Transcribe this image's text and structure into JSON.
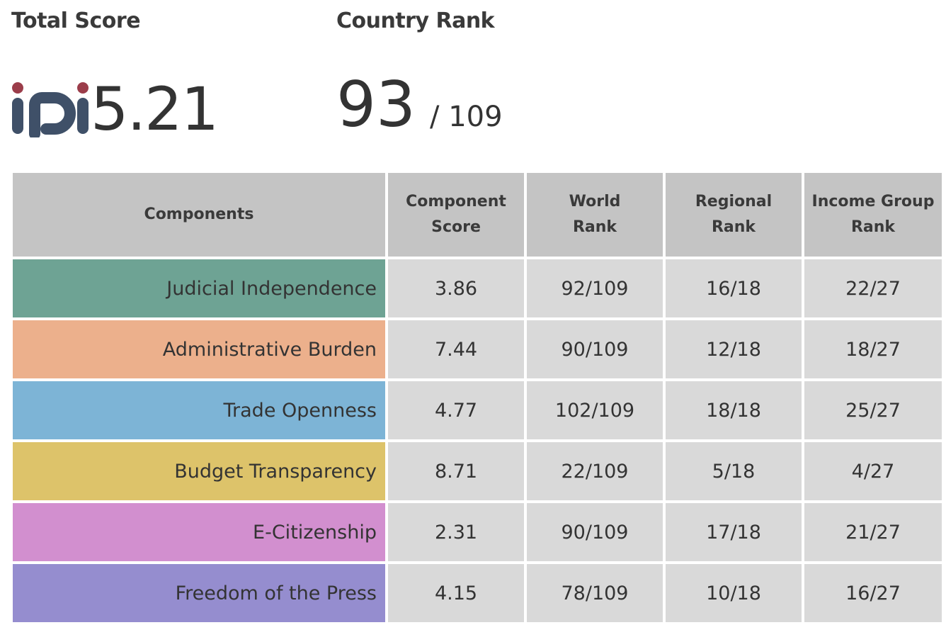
{
  "header": {
    "total_score_label": "Total Score",
    "country_rank_label": "Country Rank"
  },
  "logo": {
    "text": "iPi",
    "color": "#3f5068",
    "dot_color": "#9b3d4a"
  },
  "total_score": "5.21",
  "country_rank": {
    "rank": "93",
    "total": "/ 109"
  },
  "table": {
    "headers": {
      "components": "Components",
      "score_line1": "Component",
      "score_line2": "Score",
      "world_line1": "World",
      "world_line2": "Rank",
      "regional_line1": "Regional",
      "regional_line2": "Rank",
      "income_line1": "Income Group",
      "income_line2": "Rank"
    },
    "rows": [
      {
        "component": "Judicial Independence",
        "color": "#6ea394",
        "score": "3.86",
        "world_rank": "92/109",
        "regional_rank": "16/18",
        "income_rank": "22/27"
      },
      {
        "component": "Administrative Burden",
        "color": "#ecb08c",
        "score": "7.44",
        "world_rank": "90/109",
        "regional_rank": "12/18",
        "income_rank": "18/27"
      },
      {
        "component": "Trade Openness",
        "color": "#7db4d6",
        "score": "4.77",
        "world_rank": "102/109",
        "regional_rank": "18/18",
        "income_rank": "25/27"
      },
      {
        "component": "Budget Transparency",
        "color": "#ddc36a",
        "score": "8.71",
        "world_rank": "22/109",
        "regional_rank": "5/18",
        "income_rank": "4/27"
      },
      {
        "component": "E-Citizenship",
        "color": "#d28fcf",
        "score": "2.31",
        "world_rank": "90/109",
        "regional_rank": "17/18",
        "income_rank": "21/27"
      },
      {
        "component": "Freedom of the Press",
        "color": "#958dcf",
        "score": "4.15",
        "world_rank": "78/109",
        "regional_rank": "10/18",
        "income_rank": "16/27"
      }
    ]
  }
}
